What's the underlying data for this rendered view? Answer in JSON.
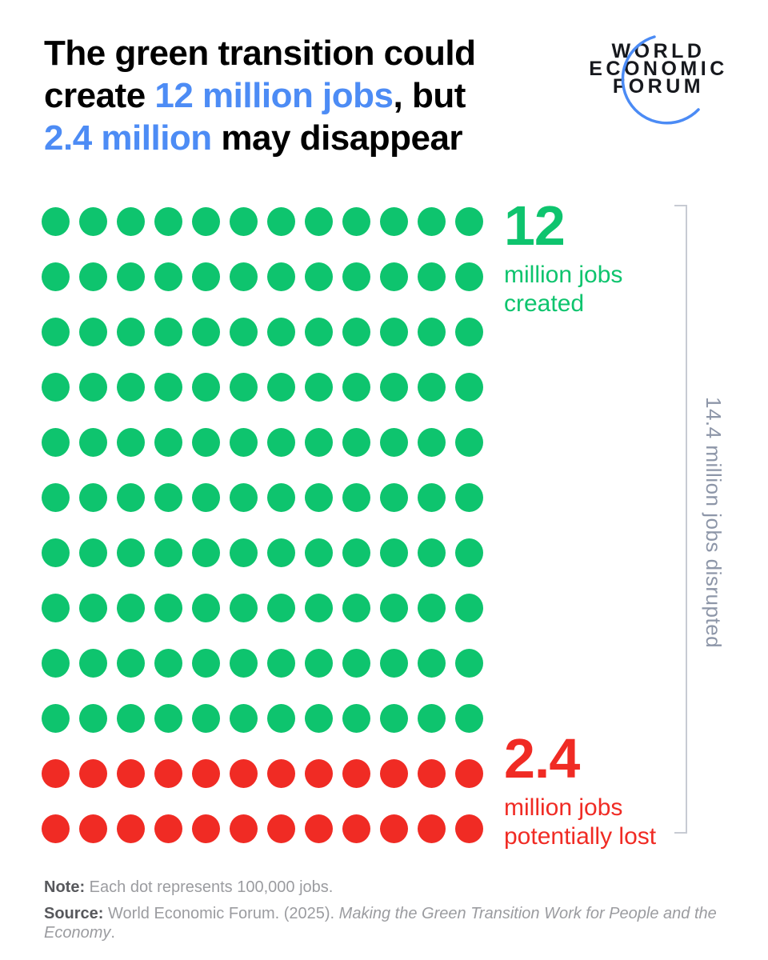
{
  "title": {
    "line1": "The green transition could",
    "line2_pre": "create ",
    "line2_blue": "12 million jobs",
    "line2_post": ", but",
    "line3_blue": "2.4 million",
    "line3_post": " may disappear"
  },
  "logo": {
    "line1": "WORLD",
    "line2": "ECONOMIC",
    "line3": "FORUM"
  },
  "chart_data": {
    "type": "pictogram",
    "title": "The green transition could create 12 million jobs, but 2.4 million may disappear",
    "unit_label": "Each dot represents 100,000 jobs",
    "dot_unit_jobs": 100000,
    "grid": {
      "columns": 12,
      "rows": 12,
      "green_rows": 10,
      "red_rows": 2
    },
    "series": [
      {
        "name": "million jobs created",
        "value_millions": 12,
        "dots": 120,
        "color": "#0ec46e",
        "label_number": "12",
        "label_line1": "million jobs",
        "label_line2": "created"
      },
      {
        "name": "million jobs potentially lost",
        "value_millions": 2.4,
        "dots": 24,
        "color": "#f02b24",
        "label_number": "2.4",
        "label_line1": "million jobs",
        "label_line2": "potentially lost"
      }
    ],
    "total_annotation": {
      "text": "14.4 million jobs disrupted",
      "value_millions": 14.4
    },
    "legend_position": "right",
    "grid_lines": false
  },
  "footer": {
    "note_label": "Note:",
    "note_text": "Each dot represents 100,000 jobs.",
    "source_label": "Source:",
    "source_text": "World Economic Forum. (2025). ",
    "source_italic": "Making the Green Transition Work for People and the Economy",
    "source_period": "."
  },
  "colors": {
    "title_text": "#000000",
    "accent_blue": "#4d8cf5",
    "green": "#0ec46e",
    "red": "#f02b24",
    "bracket": "#c7cbd3",
    "vertical_label": "#8d96a8",
    "footnote_label": "#57585c",
    "footnote_text": "#9b9ca0",
    "logo_text": "#16181d",
    "logo_arc": "#4b8bf5"
  }
}
